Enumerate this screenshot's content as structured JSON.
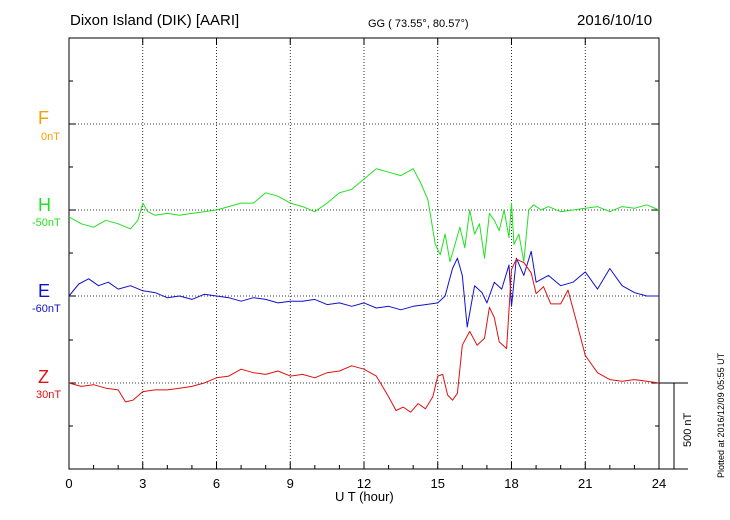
{
  "header": {
    "station": "Dixon Island (DIK)  [AARI]",
    "coords": "GG ( 73.55°,  80.57°)",
    "date": "2016/10/10"
  },
  "plotted_note": "Plotted at 2016/12/09 05:55 UT",
  "scale_bar_label": "500 nT",
  "components": [
    {
      "label": "F",
      "baseline": "0nT",
      "color": "#f5a000"
    },
    {
      "label": "H",
      "baseline": "-50nT",
      "color": "#22e022"
    },
    {
      "label": "E",
      "baseline": "-60nT",
      "color": "#1010cc"
    },
    {
      "label": "Z",
      "baseline": "30nT",
      "color": "#e01010"
    }
  ],
  "chart_data": {
    "type": "line",
    "title": "Dixon Island (DIK)  [AARI]",
    "xlabel": "U T (hour)",
    "ylabel": "",
    "xlim": [
      0,
      24
    ],
    "x_ticks": [
      "0",
      "3",
      "6",
      "9",
      "12",
      "15",
      "18",
      "21",
      "24"
    ],
    "grid": true,
    "scale_nT_per_bar": 500,
    "series": [
      {
        "name": "F",
        "baseline_nT": 0,
        "color": "#f5a000",
        "x": [],
        "values": []
      },
      {
        "name": "H",
        "baseline_nT": -50,
        "color": "#22e022",
        "x": [
          0,
          0.5,
          1,
          1.5,
          2,
          2.5,
          2.8,
          3,
          3.2,
          3.5,
          4,
          4.5,
          5,
          5.5,
          6,
          6.5,
          7,
          7.5,
          8,
          8.5,
          9,
          9.5,
          10,
          10.5,
          11,
          11.5,
          12,
          12.5,
          13,
          13.5,
          14,
          14.3,
          14.6,
          14.9,
          15.1,
          15.3,
          15.5,
          15.7,
          15.9,
          16.1,
          16.3,
          16.5,
          16.7,
          16.9,
          17.1,
          17.3,
          17.5,
          17.7,
          17.9,
          18.0,
          18.1,
          18.3,
          18.5,
          18.7,
          18.9,
          19.2,
          19.5,
          20,
          20.5,
          21,
          21.5,
          22,
          22.5,
          23,
          23.5,
          24
        ],
        "values": [
          -40,
          -80,
          -100,
          -60,
          -80,
          -110,
          -60,
          40,
          -10,
          -30,
          -20,
          -30,
          -20,
          -10,
          0,
          20,
          40,
          40,
          100,
          80,
          40,
          20,
          -10,
          40,
          100,
          120,
          180,
          240,
          220,
          200,
          240,
          160,
          60,
          -200,
          -260,
          -140,
          -300,
          -200,
          -100,
          -220,
          0,
          -140,
          -80,
          -280,
          -20,
          -60,
          -120,
          0,
          -160,
          40,
          -200,
          -140,
          -300,
          0,
          30,
          0,
          20,
          -10,
          0,
          10,
          20,
          -10,
          20,
          10,
          30,
          0
        ]
      },
      {
        "name": "E",
        "baseline_nT": -60,
        "color": "#1010cc",
        "x": [
          0,
          0.4,
          0.8,
          1.2,
          1.6,
          2,
          2.5,
          3,
          3.5,
          4,
          4.5,
          5,
          5.5,
          6,
          6.5,
          7,
          7.5,
          8,
          8.5,
          9,
          9.5,
          10,
          10.5,
          11,
          11.5,
          12,
          12.5,
          13,
          13.5,
          14,
          14.5,
          15,
          15.3,
          15.6,
          15.8,
          16.0,
          16.2,
          16.5,
          16.8,
          17.0,
          17.3,
          17.6,
          17.9,
          18.0,
          18.2,
          18.5,
          18.8,
          19.0,
          19.5,
          20,
          20.5,
          21,
          21.5,
          22,
          22.5,
          23,
          23.5,
          24
        ],
        "values": [
          0,
          70,
          100,
          60,
          80,
          40,
          60,
          30,
          20,
          -10,
          0,
          -20,
          10,
          0,
          -10,
          -30,
          -10,
          -20,
          -40,
          -30,
          -30,
          -20,
          -50,
          -40,
          -60,
          -40,
          -70,
          -60,
          -80,
          -60,
          -50,
          -40,
          0,
          160,
          220,
          120,
          -180,
          60,
          20,
          -40,
          80,
          40,
          180,
          -60,
          220,
          120,
          260,
          80,
          120,
          60,
          80,
          140,
          40,
          160,
          60,
          20,
          0,
          0
        ]
      },
      {
        "name": "Z",
        "baseline_nT": 30,
        "color": "#e01010",
        "x": [
          0,
          0.5,
          1,
          1.5,
          2,
          2.3,
          2.6,
          3,
          3.5,
          4,
          4.5,
          5,
          5.5,
          6,
          6.5,
          7,
          7.5,
          8,
          8.5,
          9,
          9.5,
          10,
          10.5,
          11,
          11.5,
          12,
          12.5,
          13,
          13.3,
          13.6,
          13.9,
          14.2,
          14.5,
          14.8,
          15.0,
          15.2,
          15.4,
          15.6,
          15.8,
          16.0,
          16.3,
          16.6,
          16.9,
          17.1,
          17.3,
          17.5,
          17.8,
          18.0,
          18.2,
          18.5,
          18.8,
          19.0,
          19.3,
          19.6,
          20,
          20.3,
          20.6,
          21,
          21.5,
          22,
          22.5,
          23,
          23.5,
          24
        ],
        "values": [
          0,
          -20,
          -10,
          -30,
          -40,
          -110,
          -100,
          -50,
          -40,
          -40,
          -30,
          -20,
          0,
          30,
          40,
          80,
          60,
          50,
          70,
          40,
          50,
          30,
          60,
          70,
          100,
          80,
          40,
          -80,
          -160,
          -140,
          -170,
          -120,
          -150,
          -80,
          40,
          50,
          -70,
          -100,
          -60,
          220,
          300,
          220,
          260,
          440,
          380,
          240,
          200,
          660,
          720,
          700,
          640,
          520,
          560,
          460,
          460,
          540,
          380,
          160,
          60,
          20,
          10,
          20,
          10,
          0
        ]
      }
    ]
  }
}
